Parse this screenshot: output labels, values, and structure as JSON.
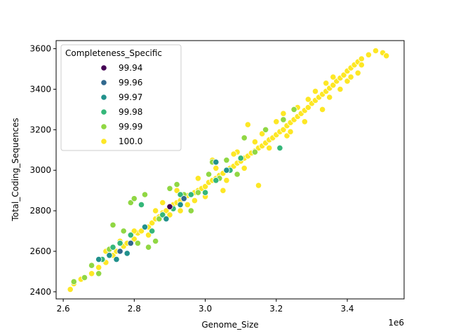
{
  "chart_data": {
    "type": "scatter",
    "title": "",
    "xlabel": "Genome_Size",
    "ylabel": "Total_Coding_Sequences",
    "x_offset_label": "1e6",
    "xlim": [
      2.58,
      3.56
    ],
    "ylim": [
      2365,
      3640
    ],
    "xticks": [
      2.6,
      2.8,
      3.0,
      3.2,
      3.4
    ],
    "xtick_labels": [
      "2.6",
      "2.8",
      "3.0",
      "3.2",
      "3.4"
    ],
    "yticks": [
      2400,
      2600,
      2800,
      3000,
      3200,
      3400,
      3600
    ],
    "ytick_labels": [
      "2400",
      "2600",
      "2800",
      "3000",
      "3200",
      "3400",
      "3600"
    ],
    "grid": false,
    "legend": {
      "title": "Completeness_Specific",
      "placement": "top-left",
      "entries": [
        {
          "label": "99.94",
          "color": "#440154"
        },
        {
          "label": "99.96",
          "color": "#31688e"
        },
        {
          "label": "99.97",
          "color": "#21918c"
        },
        {
          "label": "99.98",
          "color": "#35b779"
        },
        {
          "label": "99.99",
          "color": "#90d743"
        },
        {
          "label": "100.0",
          "color": "#fde725"
        }
      ]
    },
    "series": [
      {
        "name": "100.0",
        "color": "#fde725",
        "points": [
          [
            2.62,
            2412
          ],
          [
            2.63,
            2440
          ],
          [
            2.65,
            2462
          ],
          [
            2.68,
            2490
          ],
          [
            2.7,
            2520
          ],
          [
            2.72,
            2545
          ],
          [
            2.74,
            2580
          ],
          [
            2.75,
            2600
          ],
          [
            2.77,
            2625
          ],
          [
            2.78,
            2640
          ],
          [
            2.8,
            2660
          ],
          [
            2.81,
            2690
          ],
          [
            2.82,
            2700
          ],
          [
            2.84,
            2720
          ],
          [
            2.85,
            2740
          ],
          [
            2.86,
            2760
          ],
          [
            2.87,
            2770
          ],
          [
            2.88,
            2790
          ],
          [
            2.89,
            2800
          ],
          [
            2.9,
            2820
          ],
          [
            2.91,
            2830
          ],
          [
            2.92,
            2840
          ],
          [
            2.93,
            2850
          ],
          [
            2.94,
            2860
          ],
          [
            2.95,
            2875
          ],
          [
            2.96,
            2880
          ],
          [
            2.97,
            2890
          ],
          [
            2.98,
            2900
          ],
          [
            2.99,
            2910
          ],
          [
            3.0,
            2920
          ],
          [
            3.01,
            2940
          ],
          [
            3.02,
            2950
          ],
          [
            3.03,
            2960
          ],
          [
            3.04,
            2975
          ],
          [
            3.05,
            2985
          ],
          [
            3.06,
            3000
          ],
          [
            3.07,
            3010
          ],
          [
            3.08,
            3020
          ],
          [
            3.09,
            3035
          ],
          [
            3.1,
            3045
          ],
          [
            3.11,
            3060
          ],
          [
            3.12,
            3070
          ],
          [
            3.13,
            3085
          ],
          [
            3.14,
            3095
          ],
          [
            3.15,
            3110
          ],
          [
            3.16,
            3120
          ],
          [
            3.17,
            3135
          ],
          [
            3.18,
            3150
          ],
          [
            3.19,
            3160
          ],
          [
            3.2,
            3175
          ],
          [
            3.21,
            3190
          ],
          [
            3.22,
            3200
          ],
          [
            3.23,
            3220
          ],
          [
            3.24,
            3235
          ],
          [
            3.25,
            3250
          ],
          [
            3.26,
            3265
          ],
          [
            3.27,
            3280
          ],
          [
            3.28,
            3295
          ],
          [
            3.29,
            3310
          ],
          [
            3.3,
            3330
          ],
          [
            3.31,
            3345
          ],
          [
            3.32,
            3360
          ],
          [
            3.33,
            3375
          ],
          [
            3.34,
            3390
          ],
          [
            3.35,
            3405
          ],
          [
            3.36,
            3420
          ],
          [
            3.37,
            3440
          ],
          [
            3.38,
            3455
          ],
          [
            3.39,
            3470
          ],
          [
            3.4,
            3490
          ],
          [
            3.41,
            3505
          ],
          [
            3.42,
            3520
          ],
          [
            3.43,
            3535
          ],
          [
            3.44,
            3550
          ],
          [
            3.46,
            3570
          ],
          [
            3.48,
            3590
          ],
          [
            3.5,
            3580
          ],
          [
            3.51,
            3565
          ],
          [
            2.88,
            2840
          ],
          [
            2.9,
            2780
          ],
          [
            2.95,
            2830
          ],
          [
            2.98,
            2960
          ],
          [
            3.0,
            2870
          ],
          [
            3.03,
            3010
          ],
          [
            3.06,
            2950
          ],
          [
            3.09,
            3090
          ],
          [
            3.11,
            3010
          ],
          [
            3.14,
            3140
          ],
          [
            3.15,
            2925
          ],
          [
            3.18,
            3110
          ],
          [
            3.2,
            3240
          ],
          [
            3.23,
            3170
          ],
          [
            3.26,
            3310
          ],
          [
            3.28,
            3240
          ],
          [
            3.31,
            3390
          ],
          [
            3.33,
            3300
          ],
          [
            3.36,
            3460
          ],
          [
            3.38,
            3400
          ],
          [
            3.4,
            3440
          ],
          [
            3.43,
            3480
          ],
          [
            3.12,
            3225
          ],
          [
            2.84,
            2680
          ],
          [
            2.8,
            2700
          ],
          [
            2.76,
            2650
          ],
          [
            2.72,
            2600
          ],
          [
            2.86,
            2800
          ],
          [
            2.92,
            2900
          ],
          [
            3.02,
            3050
          ],
          [
            3.08,
            3080
          ],
          [
            3.16,
            3180
          ],
          [
            3.22,
            3280
          ],
          [
            3.34,
            3430
          ],
          [
            3.44,
            3520
          ],
          [
            3.05,
            2900
          ],
          [
            2.97,
            2850
          ],
          [
            2.93,
            2800
          ],
          [
            3.24,
            3190
          ],
          [
            3.29,
            3350
          ],
          [
            3.35,
            3360
          ],
          [
            3.41,
            3460
          ]
        ]
      },
      {
        "name": "99.99",
        "color": "#90d743",
        "points": [
          [
            2.63,
            2450
          ],
          [
            2.66,
            2470
          ],
          [
            2.68,
            2530
          ],
          [
            2.7,
            2490
          ],
          [
            2.73,
            2610
          ],
          [
            2.74,
            2730
          ],
          [
            2.75,
            2560
          ],
          [
            2.77,
            2700
          ],
          [
            2.79,
            2840
          ],
          [
            2.8,
            2860
          ],
          [
            2.81,
            2640
          ],
          [
            2.83,
            2880
          ],
          [
            2.84,
            2620
          ],
          [
            2.87,
            2760
          ],
          [
            2.9,
            2910
          ],
          [
            2.92,
            2930
          ],
          [
            2.94,
            2880
          ],
          [
            2.96,
            2800
          ],
          [
            2.98,
            2890
          ],
          [
            3.01,
            2980
          ],
          [
            3.02,
            3040
          ],
          [
            3.04,
            2960
          ],
          [
            3.06,
            3050
          ],
          [
            3.09,
            2980
          ],
          [
            3.11,
            3160
          ],
          [
            3.14,
            3090
          ],
          [
            3.17,
            3200
          ],
          [
            3.22,
            3250
          ],
          [
            3.25,
            3300
          ],
          [
            2.86,
            2650
          ]
        ]
      },
      {
        "name": "99.98",
        "color": "#35b779",
        "points": [
          [
            2.71,
            2560
          ],
          [
            2.74,
            2620
          ],
          [
            2.76,
            2640
          ],
          [
            2.79,
            2680
          ],
          [
            2.82,
            2830
          ],
          [
            2.85,
            2700
          ],
          [
            2.88,
            2780
          ],
          [
            2.91,
            2810
          ],
          [
            2.93,
            2880
          ],
          [
            2.96,
            2880
          ],
          [
            3.0,
            2890
          ],
          [
            3.03,
            2950
          ],
          [
            3.07,
            3000
          ],
          [
            3.1,
            3060
          ],
          [
            3.21,
            3110
          ]
        ]
      },
      {
        "name": "99.97",
        "color": "#21918c",
        "points": [
          [
            2.7,
            2560
          ],
          [
            2.73,
            2580
          ],
          [
            2.75,
            2560
          ],
          [
            2.78,
            2590
          ],
          [
            2.83,
            2720
          ],
          [
            2.89,
            2760
          ],
          [
            2.93,
            2830
          ],
          [
            3.03,
            3040
          ],
          [
            3.06,
            3000
          ]
        ]
      },
      {
        "name": "99.96",
        "color": "#31688e",
        "points": [
          [
            2.76,
            2600
          ],
          [
            2.79,
            2640
          ],
          [
            2.94,
            2860
          ]
        ]
      },
      {
        "name": "99.94",
        "color": "#440154",
        "points": [
          [
            2.9,
            2820
          ]
        ]
      }
    ]
  }
}
